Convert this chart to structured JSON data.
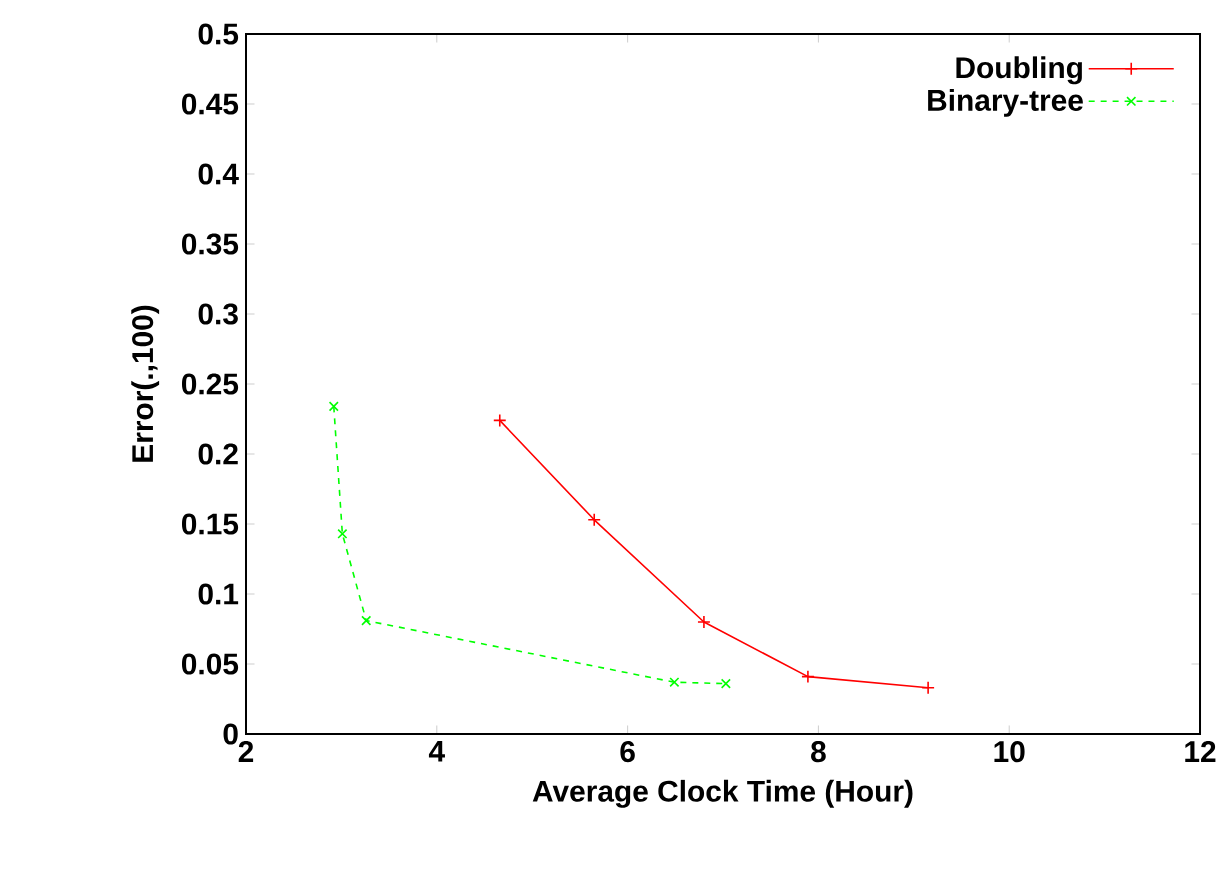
{
  "chart_data": {
    "type": "line",
    "xlabel": "Average Clock Time (Hour)",
    "ylabel": "Error(.,100)",
    "xlim": [
      2,
      12
    ],
    "xticks": [
      2,
      4,
      6,
      8,
      10,
      12
    ],
    "ylim": [
      0,
      0.5
    ],
    "yticks": [
      0,
      0.05,
      0.1,
      0.15,
      0.2,
      0.25,
      0.3,
      0.35,
      0.4,
      0.45,
      0.5
    ],
    "grid": false,
    "legend": "top right",
    "series": [
      {
        "name": "Doubling",
        "color": "#ff0000",
        "marker": "plus",
        "line_style": "solid",
        "x": [
          4.66,
          5.65,
          6.8,
          7.89,
          9.15
        ],
        "values": [
          0.224,
          0.153,
          0.08,
          0.041,
          0.033
        ]
      },
      {
        "name": "Binary-tree",
        "color": "#00ff00",
        "marker": "cross",
        "line_style": "dashed",
        "x": [
          2.92,
          3.01,
          3.26,
          6.49,
          7.03
        ],
        "values": [
          0.234,
          0.143,
          0.081,
          0.037,
          0.036
        ]
      }
    ]
  }
}
